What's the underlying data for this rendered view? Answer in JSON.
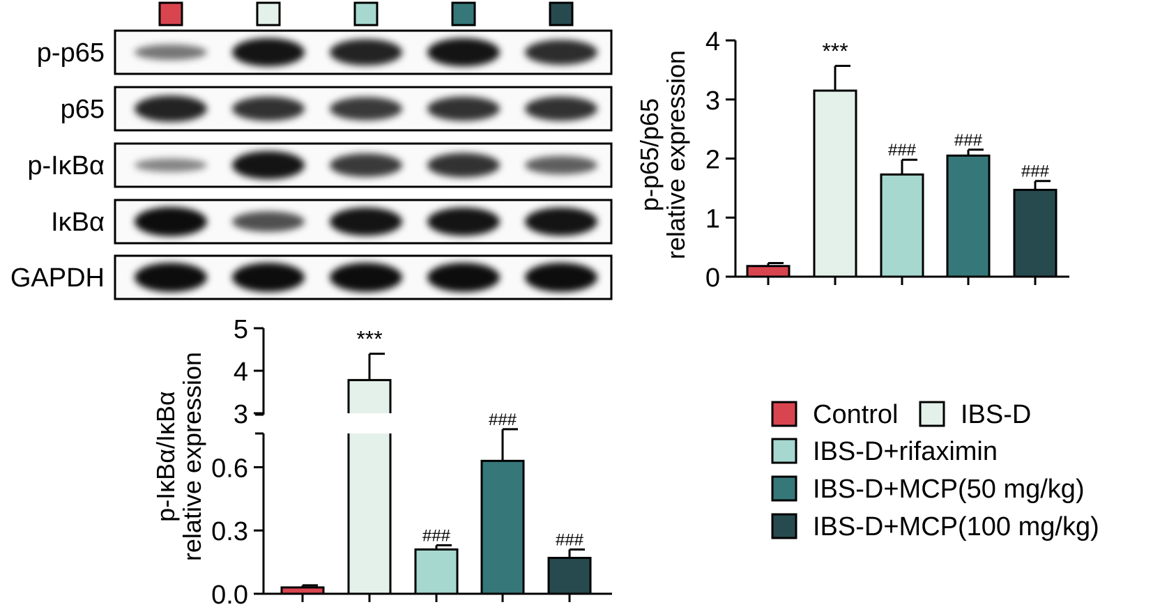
{
  "groups": [
    {
      "name": "Control",
      "color": "#d9454f"
    },
    {
      "name": "IBS-D",
      "color": "#e3f1ea"
    },
    {
      "name": "IBS-D+rifaximin",
      "color": "#a6d8cf"
    },
    {
      "name": "IBS-D+MCP(50 mg/kg)",
      "color": "#36787a"
    },
    {
      "name": "IBS-D+MCP(100 mg/kg)",
      "color": "#274a4f"
    }
  ],
  "blot": {
    "rows": [
      {
        "label": "p-p65",
        "intensity": [
          0.3,
          0.95,
          0.85,
          0.95,
          0.78
        ]
      },
      {
        "label": "p65",
        "intensity": [
          0.85,
          0.75,
          0.7,
          0.75,
          0.75
        ]
      },
      {
        "label": "p-IκBα",
        "intensity": [
          0.2,
          0.95,
          0.7,
          0.75,
          0.45
        ]
      },
      {
        "label": "IκBα",
        "intensity": [
          1.0,
          0.55,
          0.95,
          0.95,
          0.95
        ]
      },
      {
        "label": "GAPDH",
        "intensity": [
          1.0,
          1.0,
          1.0,
          1.0,
          1.0
        ]
      }
    ]
  },
  "chart_data": [
    {
      "type": "bar",
      "categories": [
        "Control",
        "IBS-D",
        "IBS-D+rifaximin",
        "IBS-D+MCP(50 mg/kg)",
        "IBS-D+MCP(100 mg/kg)"
      ],
      "values": [
        0.18,
        3.15,
        1.73,
        2.05,
        1.47
      ],
      "errors": [
        0.05,
        0.42,
        0.25,
        0.1,
        0.15
      ],
      "annotations": [
        "",
        "***",
        "###",
        "###",
        "###"
      ],
      "ylabel": [
        "p-p65/p65",
        "relative expression"
      ],
      "ylim": [
        0,
        4
      ],
      "yticks": [
        "0",
        "1",
        "2",
        "3",
        "4"
      ]
    },
    {
      "type": "bar",
      "broken_axis": true,
      "categories": [
        "Control",
        "IBS-D",
        "IBS-D+rifaximin",
        "IBS-D+MCP(50 mg/kg)",
        "IBS-D+MCP(100 mg/kg)"
      ],
      "values": [
        0.03,
        3.78,
        0.21,
        0.63,
        0.17
      ],
      "errors": [
        0.01,
        0.62,
        0.02,
        0.15,
        0.04
      ],
      "annotations": [
        "",
        "***",
        "###",
        "###",
        "###"
      ],
      "ylabel": [
        "p-IκBα/IκBα",
        "relative expression"
      ],
      "ylim_lower": [
        0,
        0.75
      ],
      "ylim_upper": [
        3,
        5
      ],
      "yticks_lower": [
        "0.0",
        "0.3",
        "0.6"
      ],
      "yticks_upper": [
        "3",
        "4",
        "5"
      ]
    }
  ]
}
